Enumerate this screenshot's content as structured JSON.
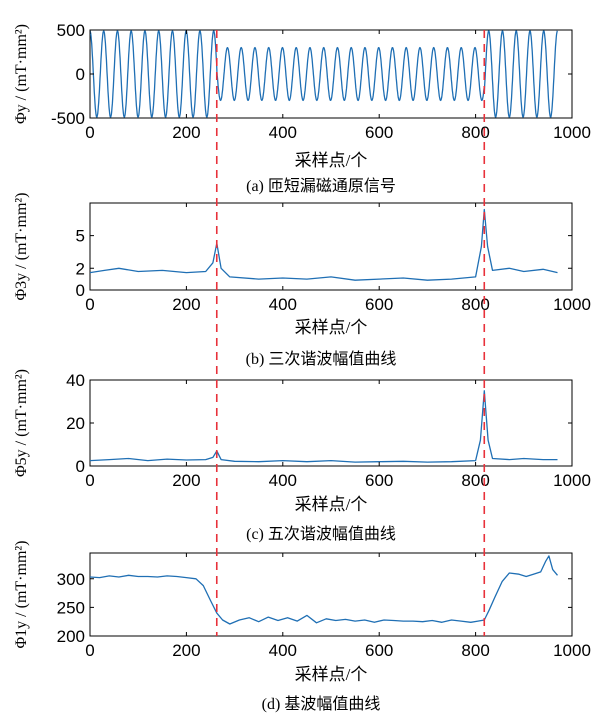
{
  "figure": {
    "colors": {
      "series": "#1f6fb4",
      "marker": "#e8313a",
      "axes": "#000000"
    }
  },
  "chart_data": [
    {
      "type": "line",
      "caption": "(a) 匝短漏磁通原信号",
      "xlabel": "采样点/个",
      "ylabel": "Φy / (mT·mm²)",
      "xlim": [
        0,
        1000
      ],
      "ylim": [
        -500,
        500
      ],
      "xticks": [
        "0",
        "200",
        "400",
        "600",
        "800",
        "1000"
      ],
      "yticks": [
        "-500",
        "0",
        "500"
      ],
      "series": [
        {
          "signal": "sine",
          "x_range": [
            0,
            970
          ],
          "cycles": 34,
          "amplitude_segments": [
            {
              "x_from": 0,
              "x_to": 263,
              "amplitude": 490
            },
            {
              "x_from": 263,
              "x_to": 818,
              "amplitude": 300
            },
            {
              "x_from": 818,
              "x_to": 970,
              "amplitude": 490
            }
          ]
        }
      ],
      "vlines": [
        263,
        818
      ]
    },
    {
      "type": "line",
      "caption": "(b) 三次谐波幅值曲线",
      "xlabel": "采样点/个",
      "ylabel": "Φ3y / (mT·mm²)",
      "xlim": [
        0,
        1000
      ],
      "ylim": [
        0,
        8
      ],
      "xticks": [
        "0",
        "200",
        "400",
        "600",
        "800",
        "1000"
      ],
      "yticks": [
        "0",
        "2",
        "5"
      ],
      "series": [
        {
          "x": [
            0,
            30,
            60,
            100,
            150,
            200,
            240,
            255,
            263,
            272,
            290,
            350,
            400,
            450,
            500,
            550,
            600,
            650,
            700,
            750,
            800,
            812,
            818,
            825,
            835,
            870,
            900,
            940,
            970
          ],
          "y": [
            1.6,
            1.8,
            2.0,
            1.7,
            1.8,
            1.6,
            1.7,
            2.5,
            4.3,
            2.0,
            1.2,
            1.0,
            1.1,
            1.0,
            1.2,
            0.9,
            1.0,
            1.1,
            0.9,
            1.0,
            1.2,
            4.0,
            7.4,
            4.0,
            1.8,
            2.0,
            1.7,
            1.9,
            1.6
          ]
        }
      ],
      "vlines": [
        263,
        818
      ]
    },
    {
      "type": "line",
      "caption": "(c) 五次谐波幅值曲线",
      "xlabel": "采样点/个",
      "ylabel": "Φ5y / (mT·mm²)",
      "xlim": [
        0,
        1000
      ],
      "ylim": [
        0,
        40
      ],
      "xticks": [
        "0",
        "200",
        "400",
        "600",
        "800",
        "1000"
      ],
      "yticks": [
        "0",
        "20",
        "40"
      ],
      "series": [
        {
          "x": [
            0,
            40,
            80,
            120,
            160,
            200,
            240,
            255,
            263,
            272,
            300,
            350,
            400,
            450,
            500,
            550,
            600,
            650,
            700,
            750,
            800,
            810,
            818,
            826,
            835,
            870,
            900,
            940,
            970
          ],
          "y": [
            2.5,
            3.0,
            3.5,
            2.5,
            3.2,
            2.8,
            3.0,
            4.0,
            7.0,
            3.0,
            2.2,
            2.0,
            2.5,
            2.0,
            2.5,
            1.8,
            2.0,
            2.2,
            1.8,
            2.0,
            2.5,
            12,
            35,
            12,
            3.5,
            3.0,
            3.5,
            3.0,
            3.0
          ]
        }
      ],
      "vlines": [
        263,
        818
      ]
    },
    {
      "type": "line",
      "caption": "(d) 基波幅值曲线",
      "xlabel": "采样点/个",
      "ylabel": "Φ1y / (mT·mm²)",
      "xlim": [
        0,
        1000
      ],
      "ylim": [
        200,
        345
      ],
      "xticks": [
        "0",
        "200",
        "400",
        "600",
        "800",
        "1000"
      ],
      "yticks": [
        "200",
        "250",
        "300"
      ],
      "series": [
        {
          "x": [
            0,
            20,
            40,
            60,
            80,
            100,
            120,
            140,
            160,
            180,
            200,
            220,
            235,
            250,
            263,
            275,
            290,
            310,
            330,
            350,
            370,
            390,
            410,
            430,
            450,
            470,
            490,
            510,
            530,
            550,
            570,
            590,
            610,
            630,
            650,
            670,
            690,
            710,
            730,
            750,
            770,
            790,
            805,
            818,
            828,
            840,
            855,
            870,
            890,
            905,
            920,
            935,
            945,
            952,
            960,
            970
          ],
          "y": [
            303,
            302,
            305,
            303,
            306,
            304,
            304,
            303,
            305,
            304,
            302,
            300,
            288,
            262,
            240,
            228,
            221,
            228,
            232,
            225,
            233,
            227,
            232,
            226,
            236,
            223,
            230,
            227,
            229,
            226,
            228,
            224,
            228,
            227,
            226,
            226,
            225,
            227,
            224,
            228,
            226,
            224,
            226,
            228,
            245,
            268,
            295,
            310,
            308,
            304,
            308,
            312,
            330,
            340,
            316,
            306
          ]
        }
      ],
      "vlines": [
        263,
        818
      ]
    }
  ]
}
